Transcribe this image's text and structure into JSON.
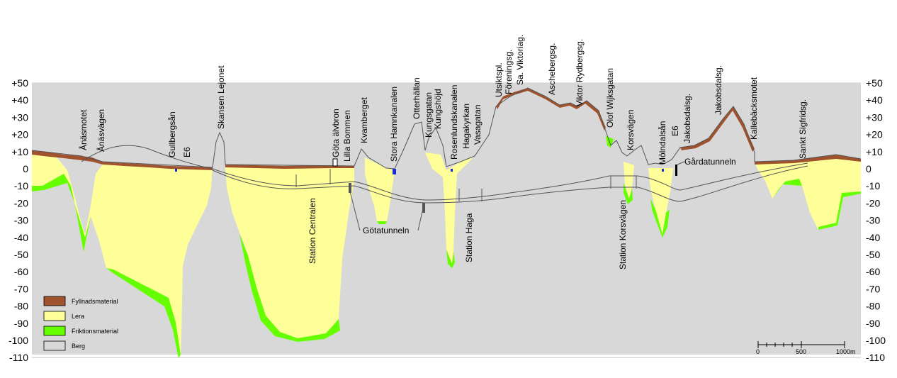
{
  "diagram": {
    "y_ticks": [
      50,
      40,
      30,
      20,
      10,
      0,
      -10,
      -20,
      -30,
      -40,
      -50,
      -60,
      -70,
      -80,
      -90,
      -100,
      -110
    ],
    "y_tick_labels": [
      "+50",
      "+40",
      "+30",
      "+20",
      "+10",
      "0",
      "-10",
      "-20",
      "-30",
      "-40",
      "-50",
      "-60",
      "-70",
      "-80",
      "-90",
      "-100",
      "-110"
    ],
    "colors": {
      "fill": "#8B4513",
      "clay": "#FFFF99",
      "friction": "#66FF00",
      "rock": "#D8D8D8",
      "grid": "#BDBDBD"
    }
  },
  "legend": {
    "items": [
      {
        "label": "Fyllnadsmaterial",
        "color": "#A0522D"
      },
      {
        "label": "Lera",
        "color": "#FFFF99"
      },
      {
        "label": "Friktionsmaterial",
        "color": "#66FF00"
      },
      {
        "label": "Berg",
        "color": "#D8D8D8"
      }
    ]
  },
  "scale": {
    "labels": [
      "0",
      "500",
      "1000m"
    ]
  },
  "place_labels": [
    "Ånäsmotet",
    "Ånäsvägen",
    "Gullbergsån",
    "E6",
    "Skansen Lejonet",
    "Göta älvbron",
    "Lilla Bommen",
    "Kvamberget",
    "Stora Hamnkanalen",
    "Otterhällan",
    "Kungsgatan",
    "Kungshöjd",
    "Rosenlundskanalen",
    "Hagakyrkan",
    "Vasagatan",
    "Utsiktspl.",
    "Föreningsg.",
    "Sa. Viktoriag.",
    "Aschebergsg.",
    "Viktor Rydbergsg.",
    "Olof Wijksgatan",
    "Korsvägen",
    "Mölndalsån",
    "E6",
    "Jakobsdalsg.",
    "Jakobsdalsg.",
    "Kallebäcksmotet",
    "Sankt Sigfridsg."
  ],
  "structure_labels": [
    "Station Centralen",
    "Götatunneln",
    "Station Haga",
    "Station Korsvägen",
    "Gårdatunneln"
  ]
}
